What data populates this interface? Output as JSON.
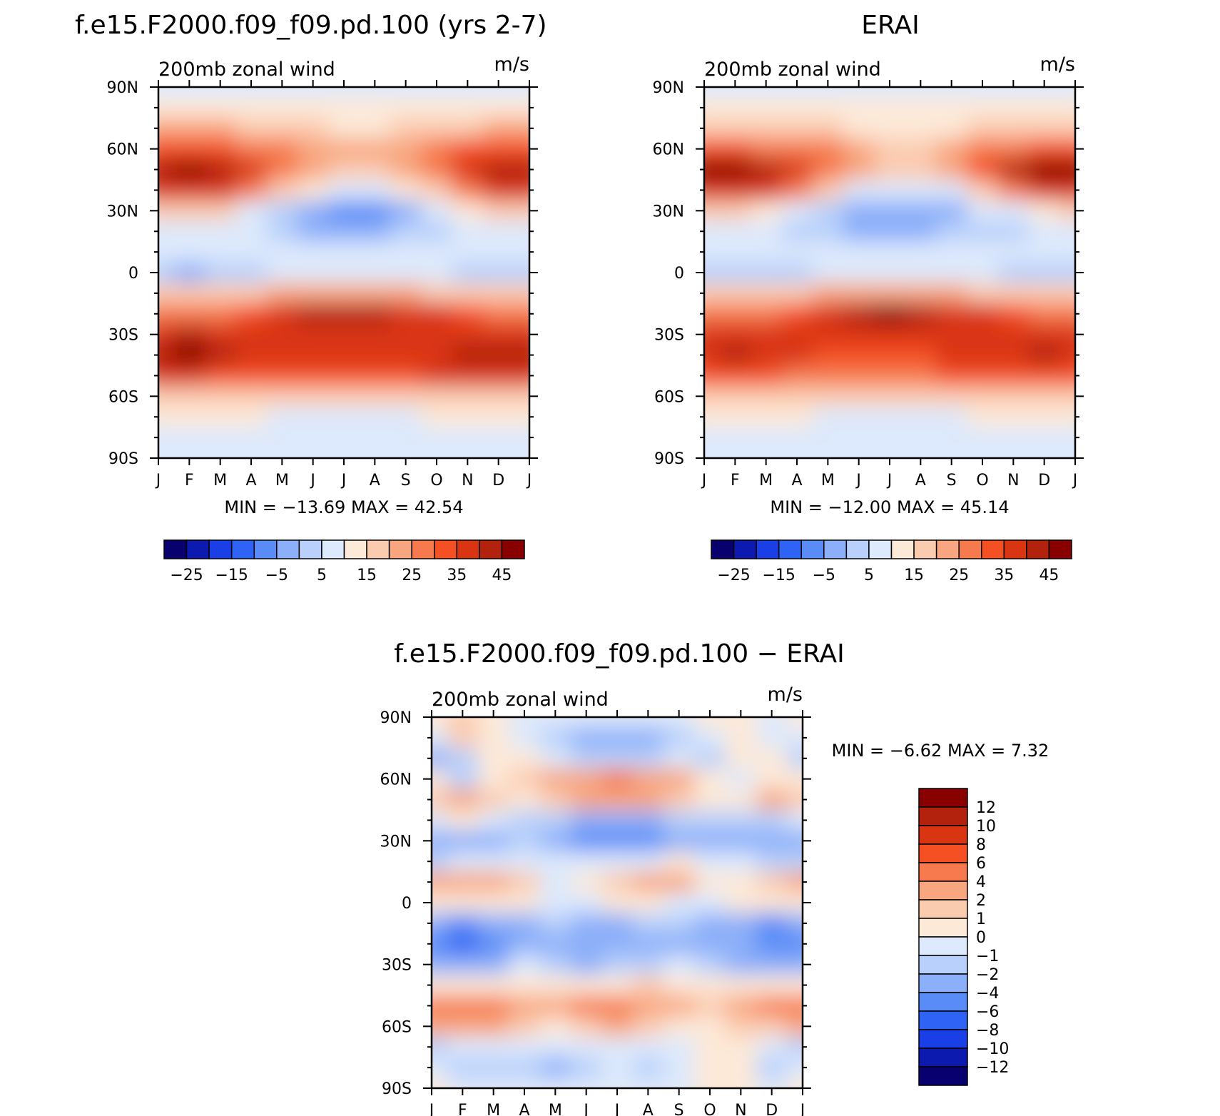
{
  "panels": [
    {
      "id": "model",
      "title": "f.e15.F2000.f09_f09.pd.100 (yrs 2-7)",
      "left_label": "200mb zonal wind",
      "right_label": "m/s",
      "minmax": "MIN = −13.69 MAX =   42.54"
    },
    {
      "id": "obs",
      "title": "ERAI",
      "left_label": "200mb zonal wind",
      "right_label": "m/s",
      "minmax": "MIN = −12.00 MAX =   45.14"
    },
    {
      "id": "diff",
      "title": "f.e15.F2000.f09_f09.pd.100 − ERAI",
      "left_label": "200mb zonal wind",
      "right_label": "m/s",
      "minmax": "MIN =   −6.62 MAX =    7.32"
    }
  ],
  "colors": {
    "full_bar": [
      "#08006e",
      "#0d1ab0",
      "#1a3fe6",
      "#2f63f5",
      "#5a8cf7",
      "#8caff9",
      "#b8d0fb",
      "#dde9fc",
      "#fde9d8",
      "#fbcbb0",
      "#f8a67f",
      "#f67a4e",
      "#f45024",
      "#d93512",
      "#b2220d",
      "#880000"
    ],
    "diff_bar": [
      "#08006e",
      "#0d1ab0",
      "#1a3fe6",
      "#2f63f5",
      "#5a8cf7",
      "#8caff9",
      "#b8d0fb",
      "#dde9fc",
      "#fde9d8",
      "#fbcbb0",
      "#f8a67f",
      "#f67a4e",
      "#f45024",
      "#d93512",
      "#b2220d",
      "#880000"
    ]
  },
  "full_bar_labels": [
    "−25",
    "−15",
    "−5",
    "5",
    "15",
    "25",
    "35",
    "45"
  ],
  "diff_bar_labels": [
    "12",
    "10",
    "8",
    "6",
    "4",
    "2",
    "1",
    "0",
    "−1",
    "−2",
    "−4",
    "−6",
    "−8",
    "−10",
    "−12"
  ],
  "chart_data": [
    {
      "type": "heatmap",
      "panel": "model",
      "title": "f.e15.F2000.f09_f09.pd.100 (yrs 2-7)",
      "variable": "200mb zonal wind",
      "units": "m/s",
      "x": [
        "J",
        "F",
        "M",
        "A",
        "M",
        "J",
        "J",
        "A",
        "S",
        "O",
        "N",
        "D",
        "J"
      ],
      "y": [
        "90N",
        "60N",
        "30N",
        "0",
        "30S",
        "60S",
        "90S"
      ],
      "min": -13.69,
      "max": 42.54,
      "contour_levels": [
        -30,
        -25,
        -20,
        -15,
        -10,
        -5,
        0,
        5,
        10,
        15,
        20,
        25,
        30,
        35,
        40,
        45,
        50
      ],
      "z": [
        [
          4,
          4,
          4,
          4,
          4,
          4,
          4,
          4,
          4,
          4,
          4,
          4,
          4
        ],
        [
          7,
          7,
          9,
          9,
          7,
          6,
          6,
          6,
          7,
          7,
          7,
          7,
          7
        ],
        [
          15,
          15,
          15,
          14,
          12,
          10,
          9,
          9,
          10,
          12,
          14,
          15,
          15
        ],
        [
          26,
          27,
          26,
          24,
          22,
          18,
          16,
          16,
          19,
          22,
          25,
          26,
          26
        ],
        [
          38,
          40,
          36,
          30,
          24,
          18,
          14,
          14,
          18,
          24,
          34,
          38,
          38
        ],
        [
          32,
          34,
          30,
          22,
          14,
          6,
          2,
          2,
          6,
          14,
          24,
          30,
          32
        ],
        [
          12,
          12,
          10,
          4,
          -2,
          -8,
          -11,
          -11,
          -7,
          0,
          6,
          10,
          12
        ],
        [
          4,
          4,
          2,
          0,
          -3,
          -6,
          -7,
          -7,
          -5,
          -2,
          1,
          2,
          4
        ],
        [
          2,
          2,
          2,
          2,
          2,
          1,
          0,
          0,
          1,
          2,
          2,
          2,
          2
        ],
        [
          -5,
          -6,
          -4,
          -2,
          0,
          2,
          3,
          3,
          2,
          0,
          -2,
          -5,
          -5
        ],
        [
          10,
          10,
          10,
          12,
          16,
          18,
          18,
          18,
          16,
          14,
          12,
          10,
          10
        ],
        [
          22,
          22,
          24,
          28,
          34,
          36,
          38,
          36,
          34,
          30,
          26,
          22,
          22
        ],
        [
          34,
          35,
          32,
          30,
          32,
          32,
          34,
          32,
          30,
          30,
          30,
          32,
          34
        ],
        [
          38,
          40,
          36,
          32,
          30,
          30,
          30,
          30,
          32,
          34,
          36,
          38,
          38
        ],
        [
          30,
          30,
          28,
          26,
          26,
          26,
          26,
          26,
          28,
          30,
          30,
          30,
          30
        ],
        [
          14,
          14,
          14,
          14,
          14,
          14,
          14,
          14,
          14,
          14,
          14,
          14,
          14
        ],
        [
          6,
          6,
          6,
          5,
          4,
          4,
          4,
          4,
          4,
          5,
          6,
          6,
          6
        ],
        [
          3,
          3,
          3,
          2,
          2,
          2,
          2,
          2,
          2,
          2,
          3,
          3,
          3
        ],
        [
          2,
          2,
          2,
          2,
          2,
          2,
          2,
          2,
          2,
          2,
          2,
          2,
          2
        ]
      ]
    },
    {
      "type": "heatmap",
      "panel": "obs",
      "title": "ERAI",
      "variable": "200mb zonal wind",
      "units": "m/s",
      "x": [
        "J",
        "F",
        "M",
        "A",
        "M",
        "J",
        "J",
        "A",
        "S",
        "O",
        "N",
        "D",
        "J"
      ],
      "y": [
        "90N",
        "60N",
        "30N",
        "0",
        "30S",
        "60S",
        "90S"
      ],
      "min": -12.0,
      "max": 45.14,
      "contour_levels": [
        -30,
        -25,
        -20,
        -15,
        -10,
        -5,
        0,
        5,
        10,
        15,
        20,
        25,
        30,
        35,
        40,
        45,
        50
      ],
      "z": [
        [
          3,
          3,
          3,
          3,
          3,
          3,
          3,
          3,
          3,
          3,
          3,
          3,
          3
        ],
        [
          7,
          7,
          7,
          7,
          6,
          5,
          5,
          5,
          6,
          7,
          7,
          7,
          7
        ],
        [
          14,
          14,
          13,
          12,
          10,
          9,
          8,
          8,
          9,
          11,
          13,
          14,
          14
        ],
        [
          26,
          26,
          24,
          22,
          20,
          16,
          14,
          14,
          17,
          22,
          24,
          26,
          26
        ],
        [
          40,
          42,
          38,
          30,
          24,
          18,
          14,
          14,
          18,
          26,
          36,
          40,
          40
        ],
        [
          32,
          34,
          30,
          22,
          12,
          4,
          0,
          0,
          4,
          12,
          24,
          30,
          32
        ],
        [
          10,
          10,
          8,
          3,
          -2,
          -7,
          -10,
          -10,
          -6,
          0,
          4,
          8,
          10
        ],
        [
          2,
          2,
          0,
          -2,
          -4,
          -6,
          -6,
          -6,
          -5,
          -3,
          -1,
          0,
          2
        ],
        [
          2,
          2,
          2,
          2,
          2,
          1,
          0,
          0,
          1,
          2,
          2,
          2,
          2
        ],
        [
          -3,
          -4,
          -3,
          -2,
          0,
          2,
          3,
          3,
          2,
          0,
          -2,
          -3,
          -3
        ],
        [
          10,
          10,
          10,
          12,
          16,
          18,
          18,
          18,
          16,
          14,
          12,
          10,
          10
        ],
        [
          22,
          22,
          24,
          28,
          34,
          38,
          40,
          38,
          34,
          30,
          26,
          22,
          22
        ],
        [
          34,
          34,
          32,
          30,
          32,
          32,
          34,
          32,
          30,
          30,
          30,
          32,
          34
        ],
        [
          34,
          36,
          34,
          30,
          28,
          28,
          28,
          28,
          30,
          32,
          34,
          36,
          34
        ],
        [
          26,
          26,
          26,
          24,
          24,
          24,
          24,
          24,
          26,
          26,
          26,
          26,
          26
        ],
        [
          14,
          14,
          12,
          12,
          12,
          12,
          12,
          12,
          12,
          12,
          14,
          14,
          14
        ],
        [
          6,
          6,
          6,
          5,
          4,
          4,
          4,
          4,
          4,
          5,
          6,
          6,
          6
        ],
        [
          3,
          3,
          3,
          2,
          2,
          2,
          2,
          2,
          2,
          2,
          3,
          3,
          3
        ],
        [
          2,
          2,
          2,
          2,
          2,
          2,
          2,
          2,
          2,
          2,
          2,
          2,
          2
        ]
      ]
    },
    {
      "type": "heatmap",
      "panel": "diff",
      "title": "f.e15.F2000.f09_f09.pd.100 − ERAI",
      "variable": "200mb zonal wind",
      "units": "m/s",
      "x": [
        "J",
        "F",
        "M",
        "A",
        "M",
        "J",
        "J",
        "A",
        "S",
        "O",
        "N",
        "D",
        "J"
      ],
      "y": [
        "90N",
        "60N",
        "30N",
        "0",
        "30S",
        "60S",
        "90S"
      ],
      "min": -6.62,
      "max": 7.32,
      "contour_levels": [
        -12,
        -10,
        -8,
        -6,
        -4,
        -2,
        -1,
        0,
        1,
        2,
        4,
        6,
        8,
        10,
        12
      ],
      "z": [
        [
          0.5,
          1,
          0.5,
          -0.5,
          -0.5,
          -0.5,
          -0.5,
          -0.5,
          -0.5,
          0.5,
          0.5,
          -0.5,
          0.5
        ],
        [
          -0.5,
          1.5,
          0.5,
          -0.5,
          -1.5,
          -2.5,
          -3,
          -2.5,
          -1.5,
          -0.5,
          0.5,
          -0.5,
          -0.5
        ],
        [
          -2.5,
          -1.5,
          0.5,
          0.5,
          -0.5,
          -1.5,
          -2,
          -1.5,
          -0.5,
          -1.5,
          0.5,
          0.5,
          -1.5
        ],
        [
          0.5,
          -1.5,
          0.5,
          1.5,
          2,
          3,
          4,
          3,
          2,
          0.5,
          -0.5,
          0.5,
          0.5
        ],
        [
          1.5,
          2,
          1.5,
          0.5,
          1.5,
          2.5,
          3,
          2.5,
          1.5,
          0.5,
          0.5,
          2,
          1.5
        ],
        [
          -0.5,
          0.5,
          -0.5,
          -1.5,
          -2,
          -2.5,
          -2.5,
          -2.5,
          -2,
          -1.5,
          -1.5,
          -1.5,
          -0.5
        ],
        [
          -4,
          -3,
          -2.5,
          -2,
          -3,
          -5,
          -6,
          -5,
          -3.5,
          -2.5,
          -2.5,
          -3.5,
          -4
        ],
        [
          -1.5,
          -1,
          -0.5,
          -0.5,
          -0.5,
          -1,
          -1,
          -0.5,
          0.5,
          -0.5,
          -1,
          -1.5,
          -1.5
        ],
        [
          3,
          3.5,
          2.5,
          1,
          -0.5,
          0.5,
          1.5,
          2.5,
          2.5,
          0.5,
          0.5,
          1.5,
          3
        ],
        [
          0.5,
          0.5,
          0.5,
          0.5,
          -0.5,
          -0.5,
          0.5,
          0.5,
          -0.5,
          -0.5,
          0.5,
          0.5,
          0.5
        ],
        [
          -4,
          -4.5,
          -4,
          -3,
          -2,
          -2.5,
          -2.5,
          -2,
          -2,
          -3,
          -4,
          -5,
          -4
        ],
        [
          -6,
          -6.5,
          -5,
          -3,
          -3,
          -4,
          -4,
          -3,
          -3,
          -3.5,
          -4,
          -5,
          -6
        ],
        [
          -2.5,
          -3,
          -2.5,
          -1,
          -1.5,
          -2.5,
          -2,
          -1.5,
          -1,
          -2,
          -3,
          -2.5,
          -2.5
        ],
        [
          0.5,
          0.5,
          0.5,
          0.5,
          0.5,
          0.5,
          0.5,
          1.5,
          0.5,
          0.5,
          0.5,
          0.5,
          0.5
        ],
        [
          4,
          5,
          5,
          3,
          2.5,
          4,
          5,
          3,
          2,
          1.5,
          3,
          4,
          4
        ],
        [
          2,
          3,
          2.5,
          1.5,
          0.5,
          1.5,
          2,
          1.5,
          0.5,
          0.5,
          1,
          1.5,
          2
        ],
        [
          -1.5,
          -1,
          -0.5,
          -1,
          -0.5,
          -0.5,
          -0.5,
          -0.5,
          -0.5,
          0.5,
          0.5,
          -1,
          -1.5
        ],
        [
          -0.5,
          -1.5,
          -1.5,
          -2,
          -2.5,
          -2,
          -1,
          -1.5,
          -0.5,
          0.5,
          0.5,
          -1.5,
          -0.5
        ],
        [
          0.5,
          -0.5,
          -0.5,
          -0.5,
          -0.5,
          -0.5,
          -0.5,
          -0.5,
          -0.5,
          0.5,
          0.5,
          -0.5,
          0.5
        ]
      ]
    }
  ]
}
